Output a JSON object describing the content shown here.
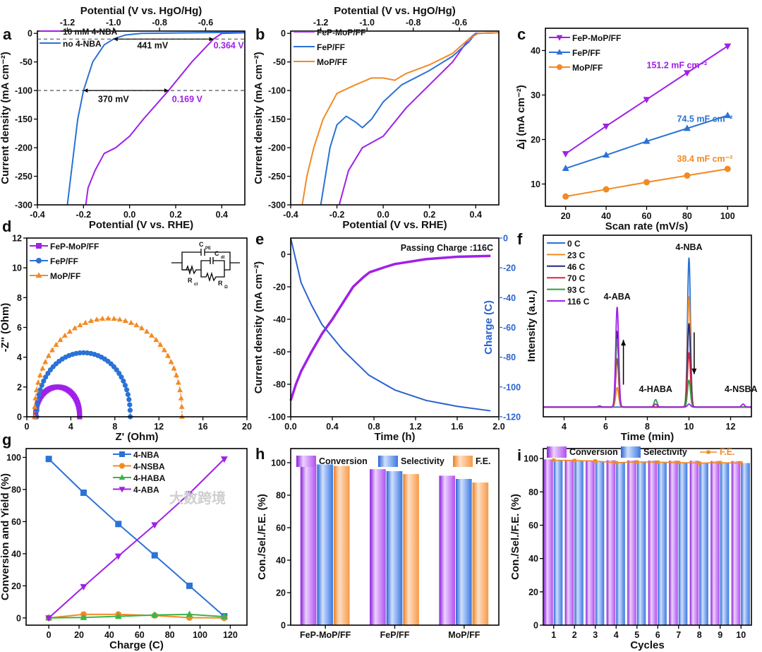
{
  "watermark": "大数跨境",
  "chart_data": [
    {
      "panel": "a",
      "type": "line",
      "xlabel": "Potential (V vs. RHE)",
      "ylabel": "Current density (mA cm⁻²)",
      "x2label": "Potential (V vs. HgO/Hg)",
      "xlim": [
        -0.4,
        0.5
      ],
      "ylim": [
        -300,
        4
      ],
      "xticks": [
        "-0.4",
        "-0.2",
        "0.0",
        "0.2",
        "0.4"
      ],
      "yticks": [
        "0",
        "-50",
        "-100",
        "-150",
        "-200",
        "-250",
        "-300"
      ],
      "x2ticks": [
        "-1.2",
        "-1.0",
        "-0.8",
        "-0.6"
      ],
      "x2_to_x_offset": 0.93,
      "reference_lines_y": [
        -10,
        -100
      ],
      "series": [
        {
          "name": "10 mM 4-NBA",
          "color": "#a020e8",
          "points": [
            [
              -0.19,
              -300
            ],
            [
              -0.18,
              -270
            ],
            [
              -0.15,
              -240
            ],
            [
              -0.11,
              -210
            ],
            [
              -0.06,
              -200
            ],
            [
              0.0,
              -180
            ],
            [
              0.06,
              -150
            ],
            [
              0.169,
              -100
            ],
            [
              0.27,
              -50
            ],
            [
              0.364,
              -10
            ],
            [
              0.4,
              0
            ],
            [
              0.5,
              1
            ]
          ]
        },
        {
          "name": "no 4-NBA",
          "color": "#2a72d6",
          "points": [
            [
              -0.27,
              -300
            ],
            [
              -0.255,
              -250
            ],
            [
              -0.24,
              -200
            ],
            [
              -0.225,
              -150
            ],
            [
              -0.2,
              -100
            ],
            [
              -0.16,
              -50
            ],
            [
              -0.11,
              -20
            ],
            [
              -0.07,
              -10
            ],
            [
              -0.02,
              -3
            ],
            [
              0.05,
              0
            ],
            [
              0.5,
              2
            ]
          ]
        }
      ],
      "annotations": [
        {
          "text": "441 mV"
        },
        {
          "text": "0.364 V"
        },
        {
          "text": "370 mV"
        },
        {
          "text": "0.169 V"
        }
      ]
    },
    {
      "panel": "b",
      "type": "line",
      "xlabel": "Potential (V vs. RHE)",
      "ylabel": "Current density (mA cm⁻²)",
      "x2label": "Potential (V vs. HgO/Hg)",
      "xlim": [
        -0.4,
        0.5
      ],
      "ylim": [
        -300,
        4
      ],
      "xticks": [
        "-0.4",
        "-0.2",
        "0.0",
        "0.2",
        "0.4"
      ],
      "yticks": [
        "0",
        "-50",
        "-100",
        "-150",
        "-200",
        "-250",
        "-300"
      ],
      "x2ticks": [
        "-1.2",
        "-1.0",
        "-0.8",
        "-0.6"
      ],
      "x2_to_x_offset": 0.93,
      "series": [
        {
          "name": "FeP-MoP/FF",
          "color": "#a020e8",
          "points": [
            [
              -0.19,
              -300
            ],
            [
              -0.15,
              -240
            ],
            [
              -0.09,
              -200
            ],
            [
              0.0,
              -180
            ],
            [
              0.1,
              -130
            ],
            [
              0.2,
              -90
            ],
            [
              0.3,
              -50
            ],
            [
              0.37,
              -10
            ],
            [
              0.4,
              0
            ],
            [
              0.5,
              1
            ]
          ]
        },
        {
          "name": "FeP/FF",
          "color": "#2a72d6",
          "points": [
            [
              -0.27,
              -300
            ],
            [
              -0.25,
              -250
            ],
            [
              -0.23,
              -200
            ],
            [
              -0.2,
              -160
            ],
            [
              -0.16,
              -145
            ],
            [
              -0.12,
              -155
            ],
            [
              -0.09,
              -165
            ],
            [
              -0.05,
              -150
            ],
            [
              0.0,
              -120
            ],
            [
              0.08,
              -90
            ],
            [
              0.2,
              -65
            ],
            [
              0.3,
              -40
            ],
            [
              0.37,
              -15
            ],
            [
              0.4,
              0
            ],
            [
              0.5,
              1
            ]
          ]
        },
        {
          "name": "MoP/FF",
          "color": "#f28a24",
          "points": [
            [
              -0.35,
              -300
            ],
            [
              -0.33,
              -250
            ],
            [
              -0.3,
              -200
            ],
            [
              -0.26,
              -150
            ],
            [
              -0.2,
              -105
            ],
            [
              -0.12,
              -90
            ],
            [
              -0.05,
              -78
            ],
            [
              0.0,
              -78
            ],
            [
              0.05,
              -82
            ],
            [
              0.1,
              -70
            ],
            [
              0.2,
              -55
            ],
            [
              0.3,
              -35
            ],
            [
              0.37,
              -10
            ],
            [
              0.41,
              0
            ],
            [
              0.5,
              1
            ]
          ]
        }
      ]
    },
    {
      "panel": "c",
      "type": "line",
      "xlabel": "Scan rate (mV/s)",
      "ylabel": "Δj (mA cm⁻²)",
      "xlim": [
        10,
        110
      ],
      "ylim": [
        5,
        45
      ],
      "xticks": [
        "20",
        "40",
        "60",
        "80",
        "100"
      ],
      "yticks": [
        "10",
        "20",
        "30",
        "40"
      ],
      "series": [
        {
          "name": "FeP-MoP/FF",
          "color": "#a020e8",
          "marker": "tridown",
          "points": [
            [
              20,
              16.8
            ],
            [
              40,
              23
            ],
            [
              60,
              29
            ],
            [
              80,
              35
            ],
            [
              100,
              41
            ]
          ]
        },
        {
          "name": "FeP/FF",
          "color": "#2a72d6",
          "marker": "tri",
          "points": [
            [
              20,
              13.5
            ],
            [
              40,
              16.5
            ],
            [
              60,
              19.6
            ],
            [
              80,
              22.5
            ],
            [
              100,
              25.4
            ]
          ]
        },
        {
          "name": "MoP/FF",
          "color": "#f28a24",
          "marker": "circle",
          "points": [
            [
              20,
              7.2
            ],
            [
              40,
              8.8
            ],
            [
              60,
              10.4
            ],
            [
              80,
              11.9
            ],
            [
              100,
              13.4
            ]
          ]
        }
      ],
      "annotations": [
        {
          "text": "151.2 mF cm⁻²",
          "color": "#a020e8"
        },
        {
          "text": "74.5 mF cm⁻²",
          "color": "#2a72d6"
        },
        {
          "text": "38.4 mF cm⁻²",
          "color": "#f28a24"
        }
      ]
    },
    {
      "panel": "d",
      "type": "scatter",
      "xlabel": "Z' (Ohm)",
      "ylabel": "-Z'' (Ohm)",
      "xlim": [
        0,
        20
      ],
      "ylim": [
        0,
        12
      ],
      "xticks": [
        "0",
        "4",
        "8",
        "12",
        "16",
        "20"
      ],
      "yticks": [
        "0",
        "2",
        "4",
        "6",
        "8",
        "10",
        "12"
      ],
      "series": [
        {
          "name": "FeP-MoP/FF",
          "color": "#a020e8",
          "marker": "square",
          "arc": {
            "start": 0.8,
            "end": 4.8,
            "peak": 2.0
          }
        },
        {
          "name": "FeP/FF",
          "color": "#2a72d6",
          "marker": "circle",
          "arc": {
            "start": 0.9,
            "end": 9.4,
            "peak": 4.3
          }
        },
        {
          "name": "MoP/FF",
          "color": "#f28a24",
          "marker": "tri",
          "arc": {
            "start": 0.7,
            "end": 14.1,
            "peak": 6.6
          }
        }
      ],
      "inset_labels": {
        "cpe": "C",
        "cpe_sub": "PE",
        "cdl": "C",
        "cdl_sub": "dl",
        "rct": "R",
        "rct_sub": "ct",
        "ro": "R",
        "ro_sub": "Ω"
      }
    },
    {
      "panel": "e",
      "type": "line",
      "xlabel": "Time (h)",
      "ylabel": "Current density (mA cm⁻²)",
      "y2label": "Charge (C)",
      "xlim": [
        0,
        2.0
      ],
      "ylim": [
        -100,
        10
      ],
      "y2lim": [
        -120,
        0
      ],
      "xticks": [
        "0.0",
        "0.4",
        "0.8",
        "1.2",
        "1.6",
        "2.0"
      ],
      "yticks": [
        "0",
        "-20",
        "-40",
        "-60",
        "-80",
        "-100"
      ],
      "y2ticks": [
        "0",
        "-20",
        "-40",
        "-60",
        "-80",
        "-100",
        "-120"
      ],
      "series": [
        {
          "name": "Current density",
          "color": "#a020e8",
          "width": 3.5,
          "points": [
            [
              0,
              -90
            ],
            [
              0.05,
              -80
            ],
            [
              0.1,
              -72
            ],
            [
              0.2,
              -60
            ],
            [
              0.3,
              -49
            ],
            [
              0.4,
              -40
            ],
            [
              0.5,
              -30
            ],
            [
              0.6,
              -20
            ],
            [
              0.7,
              -14
            ],
            [
              0.76,
              -11
            ],
            [
              0.9,
              -8
            ],
            [
              1.0,
              -6
            ],
            [
              1.3,
              -3
            ],
            [
              1.6,
              -1.5
            ],
            [
              1.92,
              -1
            ]
          ]
        },
        {
          "name": "Charge",
          "color": "#2a62d0",
          "axis": "y2",
          "points": [
            [
              0,
              0
            ],
            [
              0.1,
              -30
            ],
            [
              0.2,
              -45
            ],
            [
              0.3,
              -58
            ],
            [
              0.5,
              -75
            ],
            [
              0.75,
              -92
            ],
            [
              1.0,
              -102
            ],
            [
              1.3,
              -109
            ],
            [
              1.6,
              -113
            ],
            [
              1.92,
              -116
            ]
          ]
        }
      ],
      "annotations": [
        {
          "text": "Passing Charge :116C"
        }
      ]
    },
    {
      "panel": "f",
      "type": "line",
      "xlabel": "Time (min)",
      "ylabel": "Intensity (a.u.)",
      "xlim": [
        3,
        13
      ],
      "ylim": [
        -0.065,
        1.15
      ],
      "xticks": [
        "4",
        "6",
        "8",
        "10",
        "12"
      ],
      "yticks": [],
      "series": [
        {
          "name": "0 C",
          "color": "#2a72d6",
          "peaks": [
            [
              10.0,
              1.0
            ]
          ]
        },
        {
          "name": "23 C",
          "color": "#f28a24",
          "peaks": [
            [
              6.55,
              0.13
            ],
            [
              10.0,
              0.74
            ]
          ]
        },
        {
          "name": "46 C",
          "color": "#1c2a7a",
          "peaks": [
            [
              6.55,
              0.5
            ],
            [
              10.0,
              0.56
            ]
          ]
        },
        {
          "name": "70 C",
          "color": "#e0213c",
          "peaks": [
            [
              6.55,
              0.32
            ],
            [
              10.0,
              0.36
            ]
          ]
        },
        {
          "name": "93 C",
          "color": "#2e9e3e",
          "peaks": [
            [
              6.55,
              0.45
            ],
            [
              8.4,
              0.05
            ],
            [
              10.0,
              0.18
            ]
          ]
        },
        {
          "name": "116 C",
          "color": "#a020e8",
          "peaks": [
            [
              5.7,
              0.008
            ],
            [
              6.55,
              0.67
            ],
            [
              8.4,
              0.02
            ],
            [
              10.0,
              0.02
            ],
            [
              12.6,
              0.02
            ]
          ]
        }
      ],
      "annotations": [
        {
          "text": "4-ABA"
        },
        {
          "text": "4-NBA"
        },
        {
          "text": "4-HABA"
        },
        {
          "text": "4-NSBA"
        }
      ]
    },
    {
      "panel": "g",
      "type": "line",
      "xlabel": "Charge (C)",
      "ylabel": "Conversion and Yield (%)",
      "xlim": [
        -15,
        131
      ],
      "ylim": [
        -4.5,
        105.5
      ],
      "xticks": [
        "0",
        "20",
        "40",
        "60",
        "80",
        "100",
        "120"
      ],
      "yticks": [
        "0",
        "20",
        "40",
        "60",
        "80",
        "100"
      ],
      "series": [
        {
          "name": "4-NBA",
          "color": "#2a72d6",
          "marker": "square",
          "points": [
            [
              0,
              99
            ],
            [
              23,
              78
            ],
            [
              46,
              58.5
            ],
            [
              70,
              39
            ],
            [
              93,
              20
            ],
            [
              116,
              1
            ]
          ]
        },
        {
          "name": "4-NSBA",
          "color": "#f28a24",
          "marker": "circle",
          "points": [
            [
              0,
              0
            ],
            [
              23,
              2.2
            ],
            [
              46,
              2.2
            ],
            [
              70,
              1.5
            ],
            [
              93,
              0.2
            ],
            [
              116,
              0
            ]
          ]
        },
        {
          "name": "4-HABA",
          "color": "#3cb44b",
          "marker": "tri",
          "points": [
            [
              0,
              0
            ],
            [
              23,
              0.3
            ],
            [
              46,
              1
            ],
            [
              70,
              1.8
            ],
            [
              93,
              2.2
            ],
            [
              116,
              0.8
            ]
          ]
        },
        {
          "name": "4-ABA",
          "color": "#a020e8",
          "marker": "tridown",
          "points": [
            [
              0,
              0
            ],
            [
              23,
              19.5
            ],
            [
              46,
              38.5
            ],
            [
              70,
              58
            ],
            [
              93,
              77.5
            ],
            [
              116,
              99
            ]
          ]
        }
      ]
    },
    {
      "panel": "h",
      "type": "bar",
      "xlabel": "",
      "ylabel": "Con./Sel./F.E. (%)",
      "ylim": [
        0,
        108.7
      ],
      "yticks": [
        "0",
        "20",
        "40",
        "60",
        "80",
        "100"
      ],
      "categories": [
        "FeP-MoP/FF",
        "FeP/FF",
        "MoP/FF"
      ],
      "series": [
        {
          "name": "Conversion",
          "color": "purple",
          "values": [
            99.3,
            96,
            92
          ]
        },
        {
          "name": "Selectivity",
          "color": "blue",
          "values": [
            98.9,
            94.8,
            90
          ]
        },
        {
          "name": "F.E.",
          "color": "orange",
          "values": [
            98,
            93,
            87.8
          ]
        }
      ]
    },
    {
      "panel": "i",
      "type": "bar",
      "xlabel": "Cycles",
      "ylabel": "Con./Sel./F.E. (%)",
      "ylim": [
        0,
        106
      ],
      "yticks": [
        "0",
        "20",
        "40",
        "60",
        "80",
        "100"
      ],
      "categories": [
        "1",
        "2",
        "3",
        "4",
        "5",
        "6",
        "7",
        "8",
        "9",
        "10"
      ],
      "series": [
        {
          "name": "Conversion",
          "color": "purple",
          "values": [
            99.5,
            99.3,
            99,
            99,
            98.9,
            98.8,
            98.7,
            98.7,
            98.5,
            98.5
          ]
        },
        {
          "name": "Selectivity",
          "color": "blue",
          "values": [
            98.9,
            98.5,
            98,
            98,
            98.2,
            97.8,
            97.5,
            97.5,
            97.3,
            97.3
          ]
        },
        {
          "name": "F.E.",
          "color": "#f28a24",
          "kind": "line",
          "values": [
            99,
            98.8,
            98.5,
            97.5,
            98,
            97.8,
            97.6,
            97.3,
            97.5,
            97.3
          ]
        }
      ]
    }
  ]
}
